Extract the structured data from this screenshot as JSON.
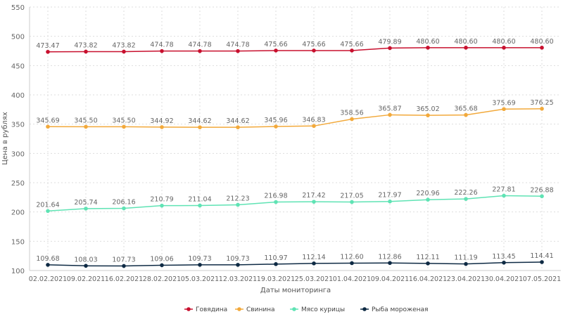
{
  "chart_data": {
    "type": "line",
    "title": "",
    "xlabel": "Даты мониторинга",
    "ylabel": "Цена в рублях",
    "ylim": [
      100,
      550
    ],
    "yticks": [
      100,
      150,
      200,
      250,
      300,
      350,
      400,
      450,
      500,
      550
    ],
    "grid": true,
    "legend_position": "bottom",
    "categories": [
      "02.02.2021",
      "09.02.2021",
      "16.02.2021",
      "28.02.2021",
      "05.03.2021",
      "12.03.2021",
      "19.03.2021",
      "25.03.2021",
      "01.04.2021",
      "09.04.2021",
      "16.04.2021",
      "23.04.2021",
      "30.04.2021",
      "07.05.2021"
    ],
    "series": [
      {
        "name": "Говядина",
        "color": "#c8102e",
        "values": [
          473.47,
          473.82,
          473.82,
          474.78,
          474.78,
          474.78,
          475.66,
          475.66,
          475.66,
          479.89,
          480.6,
          480.6,
          480.6,
          480.6
        ]
      },
      {
        "name": "Свинина",
        "color": "#f2a93b",
        "values": [
          345.69,
          345.5,
          345.5,
          344.92,
          344.62,
          344.62,
          345.96,
          346.83,
          358.56,
          365.87,
          365.02,
          365.68,
          375.69,
          376.25
        ]
      },
      {
        "name": "Мясо курицы",
        "color": "#5fe3b4",
        "values": [
          201.64,
          205.74,
          206.16,
          210.79,
          211.04,
          212.23,
          216.98,
          217.42,
          217.05,
          217.97,
          220.96,
          222.26,
          227.81,
          226.88
        ]
      },
      {
        "name": "Рыба мороженая",
        "color": "#0e2a44",
        "values": [
          109.68,
          108.03,
          107.73,
          109.06,
          109.73,
          109.73,
          110.97,
          112.14,
          112.6,
          112.86,
          112.11,
          111.19,
          113.45,
          114.41
        ]
      }
    ]
  }
}
